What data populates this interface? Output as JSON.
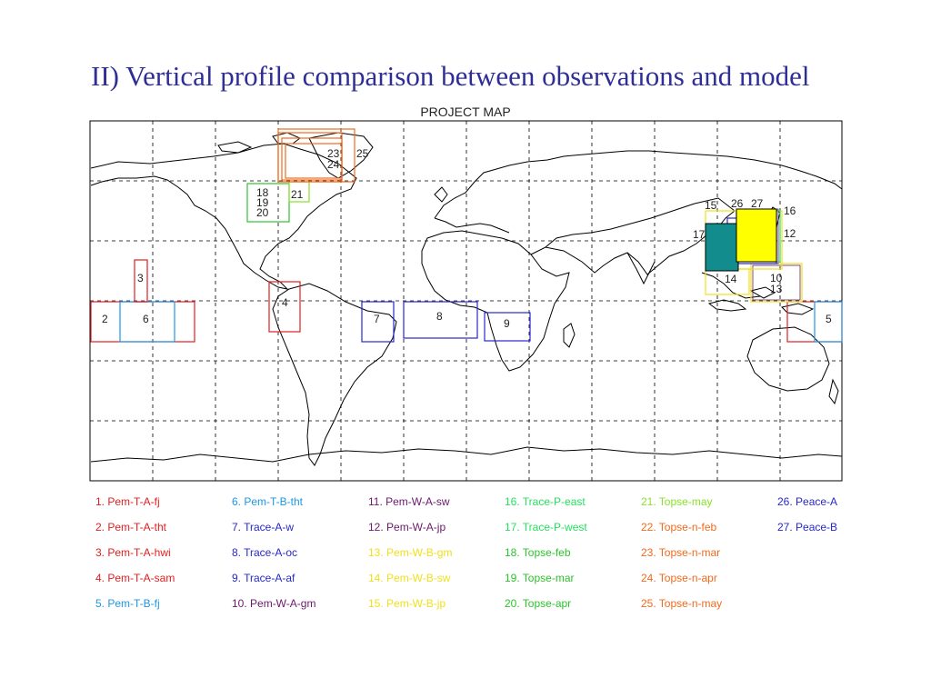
{
  "slide": {
    "title": "II) Vertical profile comparison between observations and model"
  },
  "map": {
    "title": "PROJECT MAP",
    "box_labels": {
      "b2": "2",
      "b3": "3",
      "b4": "4",
      "b5": "5",
      "b6": "6",
      "b7": "7",
      "b8": "8",
      "b9": "9",
      "b10": "10",
      "b12": "12",
      "b13": "13",
      "b14": "14",
      "b15": "15",
      "b16": "16",
      "b17": "17",
      "b18": "18",
      "b19": "19",
      "b20": "20",
      "b21": "21",
      "b23": "23",
      "b24": "24",
      "b25": "25",
      "b26": "26",
      "b27": "27"
    }
  },
  "legend": [
    {
      "text": "1. Pem-T-A-fj",
      "color": "#e02020"
    },
    {
      "text": "2. Pem-T-A-tht",
      "color": "#e02020"
    },
    {
      "text": "3. Pem-T-A-hwi",
      "color": "#e02020"
    },
    {
      "text": "4. Pem-T-A-sam",
      "color": "#e02020"
    },
    {
      "text": "5. Pem-T-B-fj",
      "color": "#1e96e6"
    },
    {
      "text": "6. Pem-T-B-tht",
      "color": "#1e96e6"
    },
    {
      "text": "7. Trace-A-w",
      "color": "#2828c8"
    },
    {
      "text": "8. Trace-A-oc",
      "color": "#2828c8"
    },
    {
      "text": "9. Trace-A-af",
      "color": "#2828c8"
    },
    {
      "text": "10. Pem-W-A-gm",
      "color": "#6a1a6a"
    },
    {
      "text": "11. Pem-W-A-sw",
      "color": "#6a1a6a"
    },
    {
      "text": "12. Pem-W-A-jp",
      "color": "#6a1a6a"
    },
    {
      "text": "13. Pem-W-B-gm",
      "color": "#f0e020"
    },
    {
      "text": "14. Pem-W-B-sw",
      "color": "#f0e020"
    },
    {
      "text": "15. Pem-W-B-jp",
      "color": "#f0e020"
    },
    {
      "text": "16. Trace-P-east",
      "color": "#28e060"
    },
    {
      "text": "17. Trace-P-west",
      "color": "#28e060"
    },
    {
      "text": "18. Topse-feb",
      "color": "#2ec22e"
    },
    {
      "text": "19. Topse-mar",
      "color": "#2ec22e"
    },
    {
      "text": "20. Topse-apr",
      "color": "#2ec22e"
    },
    {
      "text": "21. Topse-may",
      "color": "#8ae02a"
    },
    {
      "text": "22. Topse-n-feb",
      "color": "#f06a1e"
    },
    {
      "text": "23. Topse-n-mar",
      "color": "#f06a1e"
    },
    {
      "text": "24. Topse-n-apr",
      "color": "#f06a1e"
    },
    {
      "text": "25. Topse-n-may",
      "color": "#f06a1e"
    },
    {
      "text": "26. Peace-A",
      "color": "#2828c8"
    },
    {
      "text": "27. Peace-B",
      "color": "#2828c8"
    }
  ]
}
